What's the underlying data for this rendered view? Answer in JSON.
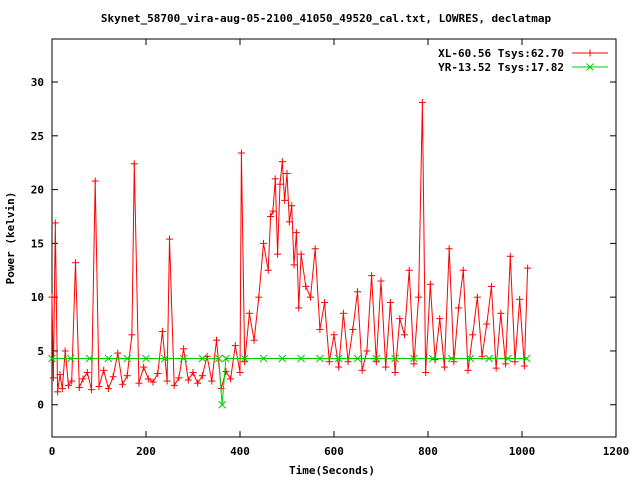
{
  "chart_data": {
    "type": "line",
    "title": "Skynet_58700_vira-aug-05-2100_41050_49520_cal.txt, LOWRES, declatmap",
    "xlabel": "Time(Seconds)",
    "ylabel": "Power (kelvin)",
    "xlim": [
      0,
      1200
    ],
    "ylim": [
      -3,
      34
    ],
    "xticks": [
      0,
      200,
      400,
      600,
      800,
      1000,
      1200
    ],
    "yticks": [
      0,
      5,
      10,
      15,
      20,
      25,
      30
    ],
    "grid": false,
    "legend_position": "top-right",
    "series": [
      {
        "name": "XL-60.56 Tsys:62.70",
        "color": "#ff0000",
        "marker": "plus",
        "x": [
          0,
          3,
          7,
          12,
          17,
          22,
          28,
          35,
          42,
          50,
          58,
          66,
          75,
          84,
          92,
          100,
          110,
          120,
          130,
          140,
          150,
          160,
          170,
          175,
          185,
          195,
          205,
          215,
          225,
          235,
          245,
          250,
          260,
          270,
          280,
          290,
          300,
          310,
          320,
          330,
          340,
          350,
          360,
          370,
          380,
          390,
          400,
          403,
          410,
          420,
          430,
          440,
          450,
          460,
          465,
          470,
          475,
          480,
          485,
          490,
          495,
          500,
          505,
          510,
          515,
          520,
          525,
          530,
          540,
          550,
          560,
          570,
          580,
          590,
          600,
          610,
          620,
          630,
          640,
          650,
          660,
          670,
          680,
          690,
          700,
          710,
          720,
          730,
          740,
          750,
          760,
          770,
          780,
          788,
          795,
          805,
          815,
          825,
          835,
          845,
          855,
          865,
          875,
          885,
          895,
          905,
          915,
          925,
          935,
          945,
          955,
          965,
          975,
          985,
          995,
          1005,
          1012
        ],
        "y": [
          10.0,
          2.5,
          16.9,
          1.2,
          2.8,
          1.5,
          5.0,
          1.8,
          2.2,
          13.2,
          1.6,
          2.4,
          3.0,
          1.4,
          20.8,
          1.7,
          3.2,
          1.5,
          2.6,
          4.8,
          1.9,
          2.7,
          6.5,
          22.4,
          2.0,
          3.5,
          2.4,
          2.1,
          2.9,
          6.8,
          2.2,
          15.4,
          1.8,
          2.5,
          5.2,
          2.3,
          3.0,
          2.0,
          2.7,
          4.5,
          2.2,
          6.0,
          1.5,
          3.1,
          2.4,
          5.5,
          3.0,
          23.4,
          4.0,
          8.5,
          6.0,
          10.0,
          15.0,
          12.5,
          17.5,
          18.0,
          21.0,
          14.0,
          20.5,
          22.6,
          19.0,
          21.5,
          17.0,
          18.5,
          13.0,
          16.0,
          9.0,
          14.0,
          11.0,
          10.0,
          14.5,
          7.0,
          9.5,
          4.0,
          6.5,
          3.5,
          8.5,
          4.0,
          7.0,
          10.5,
          3.2,
          5.0,
          12.0,
          4.0,
          11.5,
          3.5,
          9.5,
          3.0,
          8.0,
          6.5,
          12.5,
          3.8,
          10.0,
          28.1,
          3.0,
          11.2,
          4.2,
          8.0,
          3.5,
          14.5,
          4.0,
          9.0,
          12.5,
          3.2,
          6.5,
          10.0,
          4.5,
          7.5,
          11.0,
          3.4,
          8.5,
          3.8,
          13.8,
          4.0,
          9.8,
          3.6,
          12.7
        ]
      },
      {
        "name": "YR-13.52 Tsys:17.82",
        "color": "#00cc00",
        "marker": "cross",
        "x": [
          0,
          40,
          80,
          120,
          160,
          200,
          240,
          280,
          320,
          355,
          362,
          370,
          410,
          450,
          490,
          530,
          570,
          610,
          650,
          690,
          730,
          770,
          810,
          850,
          890,
          930,
          970,
          1010
        ],
        "y": [
          4.3,
          4.3,
          4.3,
          4.3,
          4.3,
          4.3,
          4.3,
          4.3,
          4.3,
          4.3,
          0.0,
          4.3,
          4.3,
          4.3,
          4.3,
          4.3,
          4.3,
          4.3,
          4.3,
          4.3,
          4.3,
          4.3,
          4.3,
          4.3,
          4.3,
          4.3,
          4.3,
          4.3
        ]
      }
    ]
  }
}
